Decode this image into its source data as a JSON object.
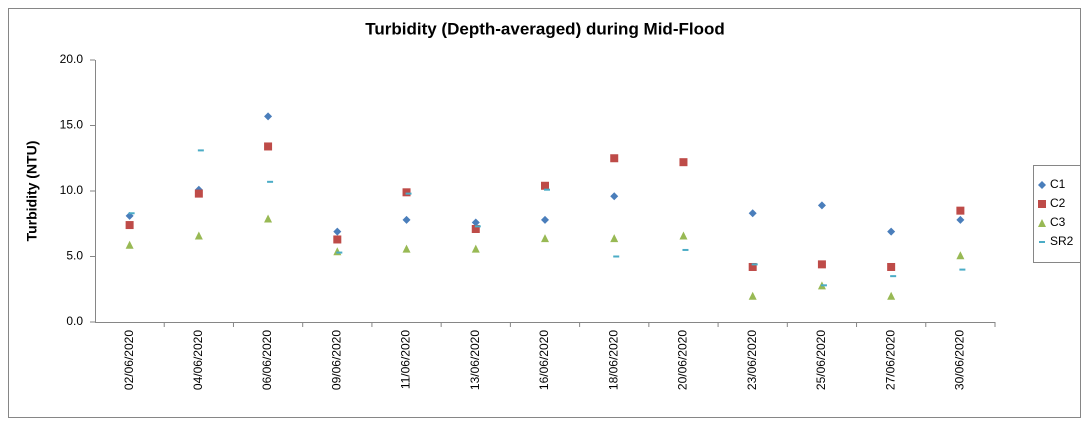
{
  "chart_data": {
    "type": "scatter",
    "title": "Turbidity (Depth-averaged) during Mid-Flood",
    "y_label": "Turbidity (NTU)",
    "categories": [
      "02/06/2020",
      "04/06/2020",
      "06/06/2020",
      "09/06/2020",
      "11/06/2020",
      "13/06/2020",
      "16/06/2020",
      "18/06/2020",
      "20/06/2020",
      "23/06/2020",
      "25/06/2020",
      "27/06/2020",
      "30/06/2020"
    ],
    "series": [
      {
        "name": "C1",
        "color": "#4a7ebb",
        "marker": "diamond",
        "values": [
          8.1,
          10.1,
          15.7,
          6.9,
          7.8,
          7.6,
          7.8,
          9.6,
          null,
          8.3,
          8.9,
          6.9,
          7.8
        ]
      },
      {
        "name": "C2",
        "color": "#be4b48",
        "marker": "square",
        "values": [
          7.4,
          9.8,
          13.4,
          6.3,
          9.9,
          7.1,
          10.4,
          12.5,
          12.2,
          4.2,
          4.4,
          4.2,
          8.5
        ]
      },
      {
        "name": "C3",
        "color": "#98b954",
        "marker": "triangle",
        "values": [
          5.9,
          6.6,
          7.9,
          5.4,
          5.6,
          5.6,
          6.4,
          6.4,
          6.6,
          2.0,
          2.8,
          2.0,
          5.1
        ]
      },
      {
        "name": "SR2",
        "color": "#4bacc6",
        "marker": "dash",
        "values": [
          8.3,
          13.1,
          10.7,
          5.3,
          9.8,
          7.3,
          10.1,
          5.0,
          5.5,
          4.4,
          2.8,
          3.5,
          4.0
        ]
      }
    ],
    "ylim": [
      0,
      20
    ],
    "yticks": [
      {
        "value": 0,
        "label": "0.0"
      },
      {
        "value": 5,
        "label": "5.0"
      },
      {
        "value": 10,
        "label": "10.0"
      },
      {
        "value": 15,
        "label": "15.0"
      },
      {
        "value": 20,
        "label": "20.0"
      }
    ],
    "grid": false,
    "legend": "right"
  }
}
